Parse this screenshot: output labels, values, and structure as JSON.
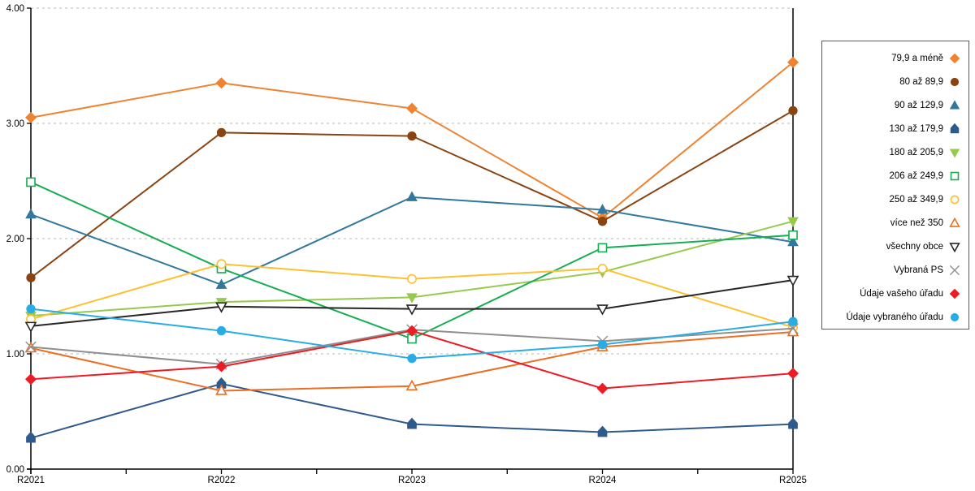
{
  "chart_data": {
    "type": "line",
    "title": "",
    "xlabel": "",
    "ylabel": "",
    "x_categories": [
      "R2021",
      "R2022",
      "R2023",
      "R2024",
      "R2025"
    ],
    "y_axis": {
      "min": 0,
      "max": 4,
      "tick_step": 1,
      "tick_labels": [
        "0.00",
        "1.00",
        "2.00",
        "3.00",
        "4.00"
      ]
    },
    "grid": "horizontal dotted lines at each 1.00",
    "grid_color": "#b8b8b8",
    "axis_color": "#000000",
    "legend_position": "right-boxed",
    "series": [
      {
        "name": "79,9 a méně",
        "color": "#EE8331",
        "marker": "diamond",
        "marker_fill": "filled",
        "values": [
          3.05,
          3.35,
          3.13,
          2.18,
          3.53
        ]
      },
      {
        "name": "80 až 89,9",
        "color": "#8A4412",
        "marker": "circle",
        "marker_fill": "filled",
        "values": [
          1.66,
          2.92,
          2.89,
          2.15,
          3.11
        ]
      },
      {
        "name": "90 až 129,9",
        "color": "#32789C",
        "marker": "triangle-up",
        "marker_fill": "filled",
        "values": [
          2.21,
          1.6,
          2.36,
          2.25,
          1.97
        ]
      },
      {
        "name": "130 až 179,9",
        "color": "#2F5A8C",
        "marker": "pentagon",
        "marker_fill": "filled",
        "values": [
          0.27,
          0.74,
          0.39,
          0.32,
          0.39
        ]
      },
      {
        "name": "180 až 205,9",
        "color": "#97C94D",
        "marker": "triangle-down",
        "marker_fill": "filled",
        "values": [
          1.33,
          1.45,
          1.49,
          1.71,
          2.15
        ]
      },
      {
        "name": "206 až 249,9",
        "color": "#17AD52",
        "marker": "square",
        "marker_fill": "open",
        "values": [
          2.49,
          1.74,
          1.13,
          1.92,
          2.03
        ]
      },
      {
        "name": "250 až 349,9",
        "color": "#FDC02E",
        "marker": "circle",
        "marker_fill": "open",
        "values": [
          1.3,
          1.78,
          1.65,
          1.74,
          1.23
        ]
      },
      {
        "name": "více než 350",
        "color": "#EC6E21",
        "marker": "triangle-up",
        "marker_fill": "open",
        "values": [
          1.05,
          0.68,
          0.72,
          1.06,
          1.19
        ]
      },
      {
        "name": "všechny obce",
        "color": "#262626",
        "marker": "triangle-down",
        "marker_fill": "open",
        "values": [
          1.24,
          1.41,
          1.39,
          1.39,
          1.64
        ]
      },
      {
        "name": "Vybraná PS",
        "color": "#8F8F8F",
        "marker": "x",
        "marker_fill": "open",
        "values": [
          1.06,
          0.91,
          1.21,
          1.11,
          1.22
        ]
      },
      {
        "name": "Údaje vašeho úřadu",
        "color": "#ED1C24",
        "marker": "diamond",
        "marker_fill": "filled",
        "values": [
          0.78,
          0.89,
          1.2,
          0.7,
          0.83
        ]
      },
      {
        "name": "Údaje vybraného úřadu",
        "color": "#29ACE3",
        "marker": "circle",
        "marker_fill": "filled",
        "values": [
          1.39,
          1.2,
          0.96,
          1.08,
          1.28
        ]
      }
    ]
  }
}
